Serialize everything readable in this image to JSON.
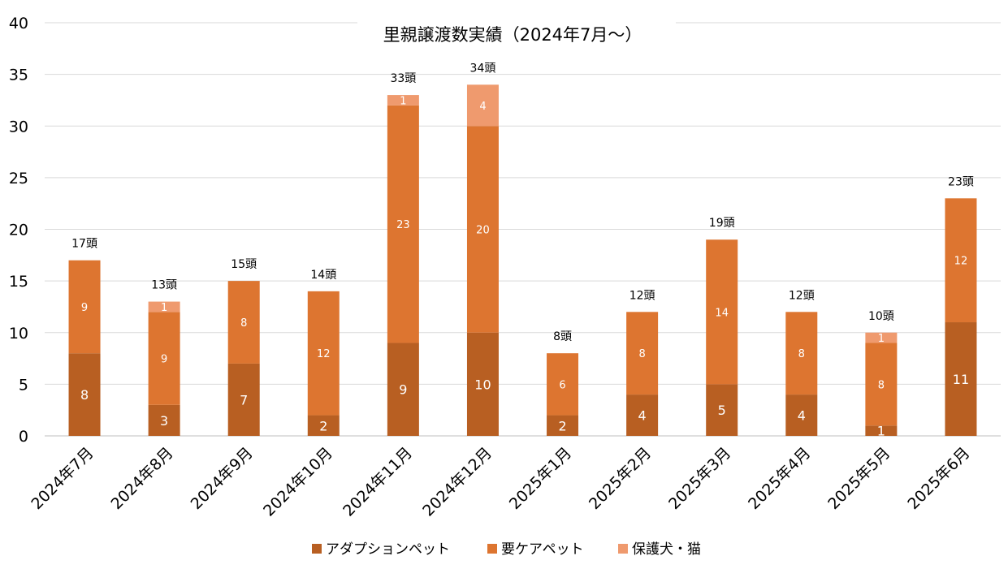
{
  "chart_data": {
    "type": "bar",
    "stacked": true,
    "title": "里親譲渡数実績（2024年7月～）",
    "xlabel": "",
    "ylabel": "",
    "ylim": [
      0,
      40
    ],
    "y_ticks": [
      0,
      5,
      10,
      15,
      20,
      25,
      30,
      35,
      40
    ],
    "grid": true,
    "legend_position": "bottom",
    "categories": [
      "2024年7月",
      "2024年8月",
      "2024年9月",
      "2024年10月",
      "2024年11月",
      "2024年12月",
      "2025年1月",
      "2025年2月",
      "2025年3月",
      "2025年4月",
      "2025年5月",
      "2025年6月"
    ],
    "series": [
      {
        "name": "アダプションペット",
        "color": "#b85f22",
        "values": [
          8,
          3,
          7,
          2,
          9,
          10,
          2,
          4,
          5,
          4,
          1,
          11
        ]
      },
      {
        "name": "要ケアペット",
        "color": "#dd7530",
        "values": [
          9,
          9,
          8,
          12,
          23,
          20,
          6,
          8,
          14,
          8,
          8,
          12
        ]
      },
      {
        "name": "保護犬・猫",
        "color": "#ef9a6e",
        "values": [
          0,
          1,
          0,
          0,
          1,
          4,
          0,
          0,
          0,
          0,
          1,
          0
        ]
      }
    ],
    "totals": [
      "17頭",
      "13頭",
      "15頭",
      "14頭",
      "33頭",
      "34頭",
      "8頭",
      "12頭",
      "19頭",
      "12頭",
      "10頭",
      "23頭"
    ]
  }
}
